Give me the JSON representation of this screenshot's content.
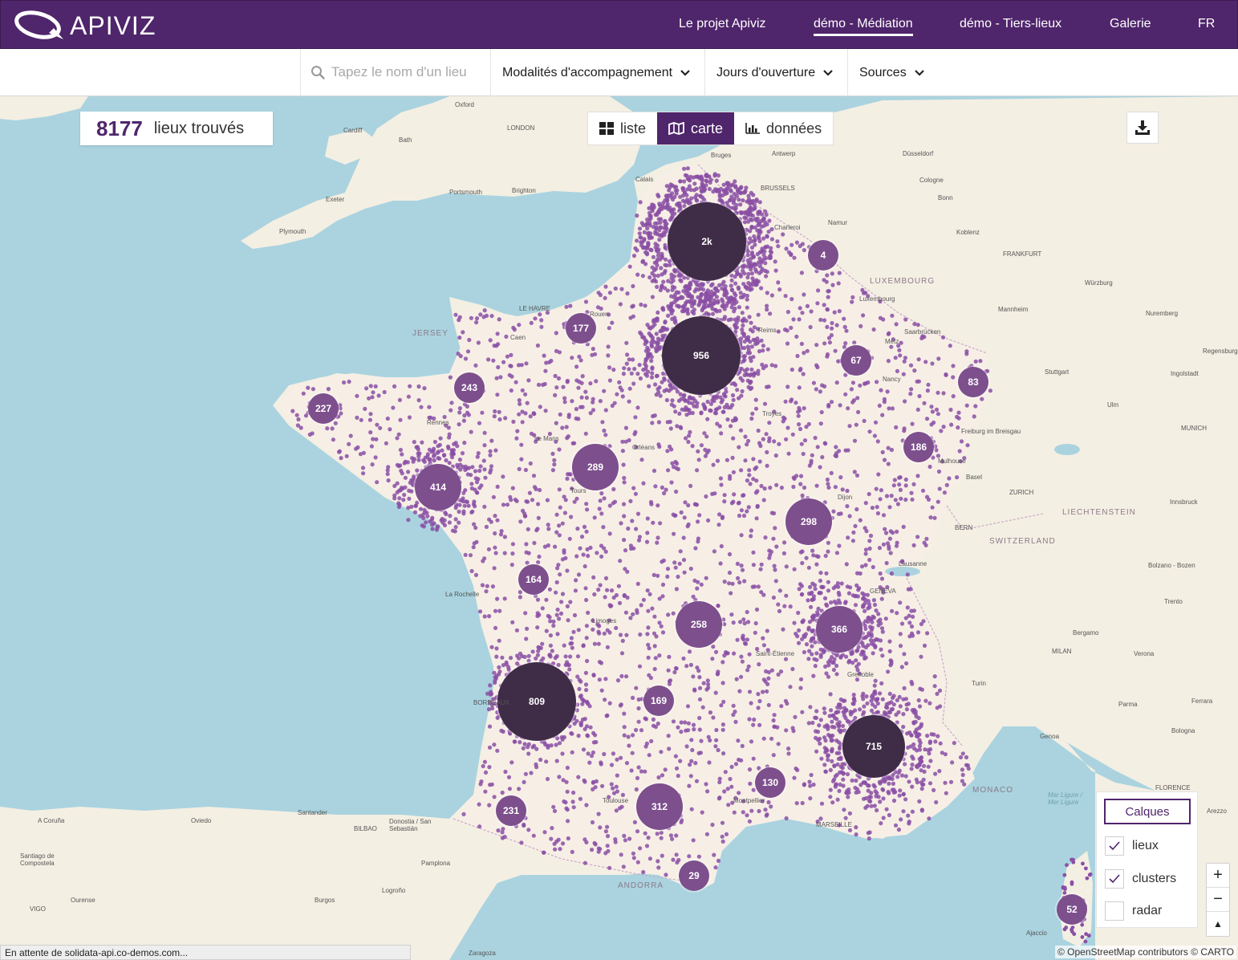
{
  "header": {
    "brand": "APIVIZ",
    "nav": [
      {
        "label": "Le projet Apiviz"
      },
      {
        "label": "démo - Médiation"
      },
      {
        "label": "démo - Tiers-lieux"
      },
      {
        "label": "Galerie"
      },
      {
        "label": "FR"
      }
    ]
  },
  "filters": {
    "search_placeholder": "Tapez le nom d'un lieu",
    "search_value": "",
    "dropdowns": [
      {
        "label": "Modalités d'accompagnement"
      },
      {
        "label": "Jours d'ouverture"
      },
      {
        "label": "Sources"
      }
    ]
  },
  "results": {
    "count": "8177",
    "label": "lieux trouvés"
  },
  "views": [
    {
      "label": "liste",
      "icon": "grid-icon"
    },
    {
      "label": "carte",
      "icon": "map-icon",
      "active": true
    },
    {
      "label": "données",
      "icon": "bar-chart-icon"
    }
  ],
  "layers": {
    "title": "Calques",
    "items": [
      {
        "label": "lieux",
        "checked": true
      },
      {
        "label": "clusters",
        "checked": true
      },
      {
        "label": "radar",
        "checked": false
      }
    ]
  },
  "zoom": {
    "in": "+",
    "out": "−",
    "north": "▲"
  },
  "attribution": "© OpenStreetMap contributors © CARTO",
  "status": "En attente de solidata-api.co-demos.com...",
  "colors": {
    "brand": "#4f256b",
    "cluster_large": "#3f2d47",
    "cluster_small": "#7d4f8c",
    "point": "#8a4fa5"
  },
  "map_labels": {
    "cities": [
      "Oxford",
      "LONDON",
      "Cardiff",
      "Bath",
      "Exeter",
      "Plymouth",
      "Portsmouth",
      "Brighton",
      "Calais",
      "Bruges",
      "Antwerp",
      "BRUSSELS",
      "Düsseldorf",
      "Cologne",
      "Bonn",
      "Namur",
      "Charleroi",
      "Koblenz",
      "FRANKFURT",
      "LUXEMBOURG",
      "Luxembourg",
      "Würzburg",
      "Mannheim",
      "Nuremberg",
      "Saarbrücken",
      "Stuttgart",
      "Ingolstadt",
      "Regensburg",
      "Ulm",
      "MUNICH",
      "Freiburg im Breisgau",
      "Mulhouse",
      "Basel",
      "ZURICH",
      "LIECHTENSTEIN",
      "Innsbruck",
      "BERN",
      "SWITZERLAND",
      "Bolzano - Bozen",
      "Trento",
      "Lausanne",
      "GENEVA",
      "Grenoble",
      "Bergamo",
      "MILAN",
      "Verona",
      "Turin",
      "Parma",
      "Ferrara",
      "Bologna",
      "Genoa",
      "FLORENCE",
      "Arezzo",
      "LE HAVRE",
      "JERSEY",
      "Rouen",
      "Caen",
      "Reims",
      "Metz",
      "Nancy",
      "Troyes",
      "Rennes",
      "Le Mans",
      "Orléans",
      "Tours",
      "Dijon",
      "La Rochelle",
      "Limoges",
      "Saint-Étienne",
      "BORDEAUX",
      "Toulouse",
      "Montpellier",
      "MARSEILLE",
      "Santander",
      "BILBAO",
      "Donostia / San Sebastián",
      "Pamplona",
      "Logroño",
      "Burgos",
      "Oviedo",
      "A Coruña",
      "Santiago de Compostela",
      "Ourense",
      "VIGO",
      "ANDORRA",
      "Zaragoza",
      "Ajaccio",
      "Mar Ligure / Mer Ligure",
      "MONACO"
    ],
    "positions_note": ""
  },
  "clusters": [
    {
      "label": "2k",
      "size": "xl"
    },
    {
      "label": "4",
      "size": "s"
    },
    {
      "label": "177",
      "size": "s"
    },
    {
      "label": "956",
      "size": "xl"
    },
    {
      "label": "67",
      "size": "s"
    },
    {
      "label": "83",
      "size": "s"
    },
    {
      "label": "243",
      "size": "s"
    },
    {
      "label": "227",
      "size": "s"
    },
    {
      "label": "186",
      "size": "s"
    },
    {
      "label": "289",
      "size": "m"
    },
    {
      "label": "414",
      "size": "m"
    },
    {
      "label": "298",
      "size": "m"
    },
    {
      "label": "164",
      "size": "s"
    },
    {
      "label": "258",
      "size": "m"
    },
    {
      "label": "366",
      "size": "m"
    },
    {
      "label": "809",
      "size": "xl"
    },
    {
      "label": "169",
      "size": "s"
    },
    {
      "label": "715",
      "size": "l"
    },
    {
      "label": "130",
      "size": "s"
    },
    {
      "label": "231",
      "size": "s"
    },
    {
      "label": "312",
      "size": "m"
    },
    {
      "label": "29",
      "size": "s"
    },
    {
      "label": "52",
      "size": "s"
    }
  ]
}
